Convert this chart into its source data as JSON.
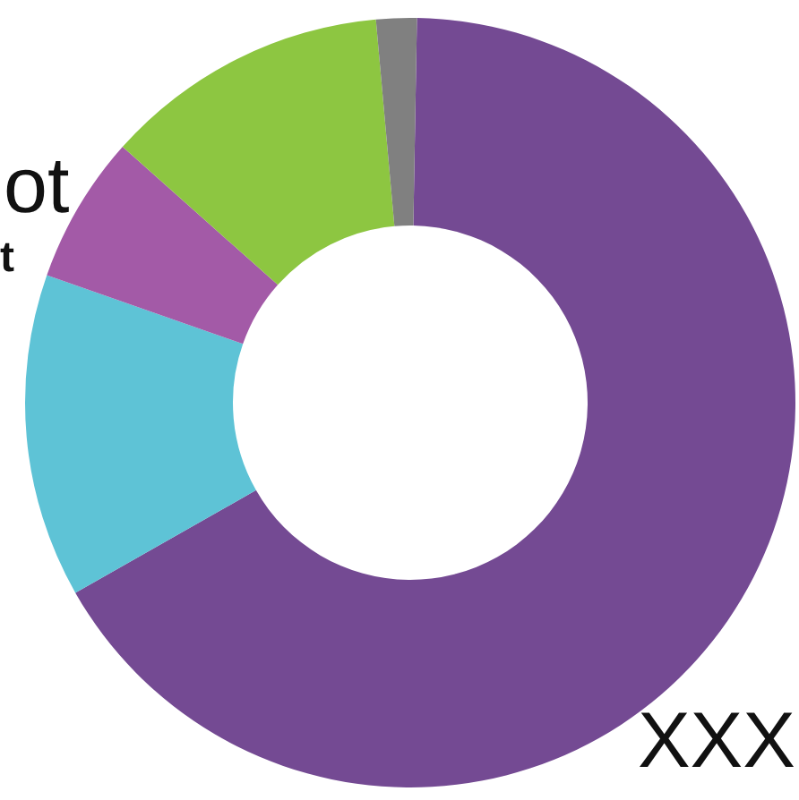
{
  "chart_data": {
    "type": "donut",
    "categories": [
      null,
      null,
      null,
      null,
      null
    ],
    "values": [
      66.5,
      13.6,
      6.2,
      12,
      1.7
    ],
    "colors": [
      "#744a93",
      "#5ec3d6",
      "#a35aa7",
      "#8dc641",
      "#808080"
    ],
    "annotations": [
      "ot",
      "t",
      "XXX"
    ]
  }
}
